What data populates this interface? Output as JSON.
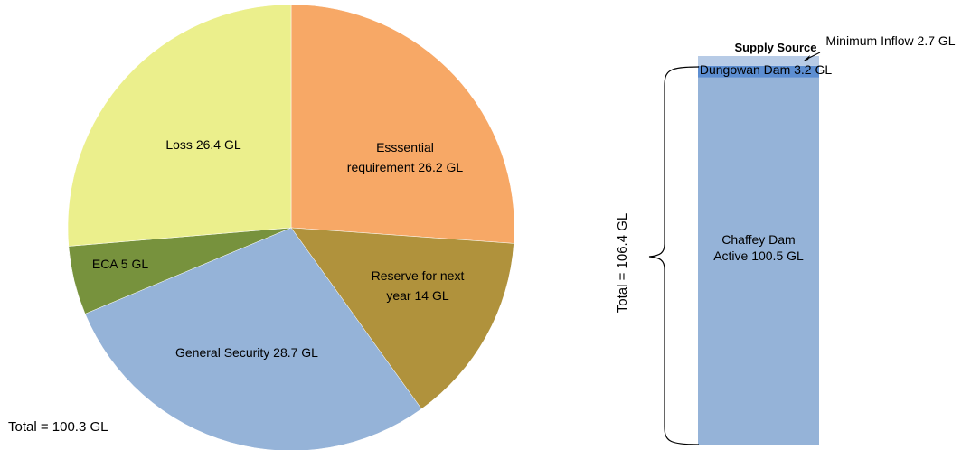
{
  "chart_data": [
    {
      "type": "pie",
      "unit": "GL",
      "slices": [
        {
          "label_lines": [
            "Esssential",
            "requirement  26.2 GL"
          ],
          "value": 26.2,
          "color": "#f7a866"
        },
        {
          "label_lines": [
            "Reserve for next",
            "year 14 GL"
          ],
          "value": 14,
          "color": "#b0923c"
        },
        {
          "label_lines": [
            "General Security 28.7 GL"
          ],
          "value": 28.7,
          "color": "#95b3d8"
        },
        {
          "label_lines": [
            "ECA 5 GL"
          ],
          "value": 5,
          "color": "#77923d"
        },
        {
          "label_lines": [
            "Loss 26.4 GL"
          ],
          "value": 26.4,
          "color": "#ebef8c"
        }
      ],
      "total_label": "Total = 100.3 GL"
    },
    {
      "type": "bar",
      "stacked": true,
      "unit": "GL",
      "title": "Supply Source",
      "ylim": [
        0,
        106.4
      ],
      "segments": [
        {
          "label_lines": [
            "Chaffey Dam",
            "Active 100.5 GL"
          ],
          "value": 100.5,
          "color": "#95b3d8"
        },
        {
          "label_lines": [
            "Dungowan  Dam 3.2 GL"
          ],
          "value": 3.2,
          "color": "#5d8ed1"
        },
        {
          "label_lines": [
            "Minimum  Inflow 2.7 GL"
          ],
          "value": 2.7,
          "color": "#b7cbe6"
        }
      ],
      "total_label": "Total = 106.4 GL"
    }
  ]
}
